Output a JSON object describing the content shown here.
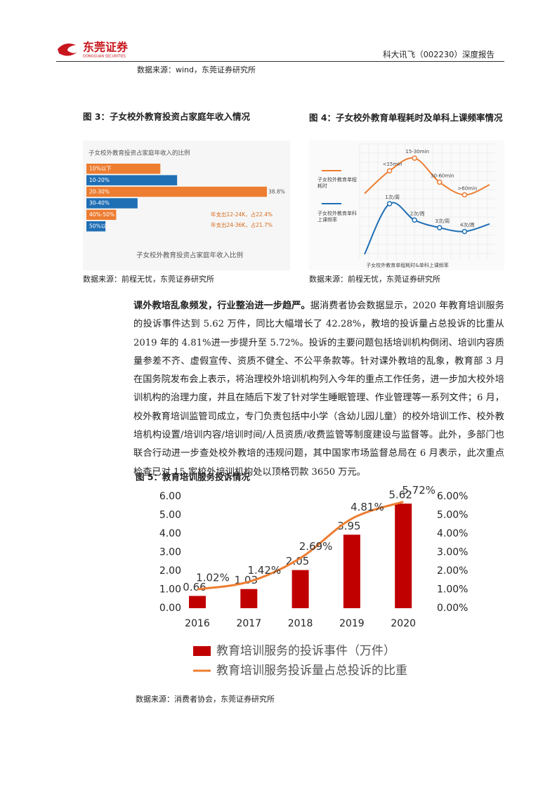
{
  "header": {
    "logo_name": "东莞证券",
    "logo_sub": "DONGGUAN SECURITIES",
    "report": "科大讯飞（002230）深度报告"
  },
  "source_top": "数据来源：wind，东莞证券研究所",
  "figure3": {
    "caption": "图 3：子女校外教育投资占家庭年收入情况",
    "source": "数据来源：前程无忧，东莞证券研究所"
  },
  "figure4": {
    "caption": "图 4：子女校外教育单程耗时及单科上课频率情况",
    "source": "数据来源：前程无忧，东莞证券研究所"
  },
  "paragraph": {
    "lead": "课外教培乱象频发，行业整治进一步趋严。",
    "body": "据消费者协会数据显示，2020 年教育培训服务的投诉事件达到 5.62 万件，同比大幅增长了 42.28%，教培的投诉量占总投诉的比重从 2019 年的 4.81%进一步提升至 5.72%。投诉的主要问题包括培训机构倒闭、培训内容质量参差不齐、虚假宣传、资质不健全、不公平条款等。针对课外教培的乱象，教育部 3 月在国务院发布会上表示，将治理校外培训机构列入今年的重点工作任务，进一步加大校外培训机构的治理力度，并且在随后下发了针对学生睡眠管理、作业管理等一系列文件；6 月，校外教育培训监管司成立，专门负责包括中小学（含幼儿园儿童）的校外培训工作、校外教培机构设置/培训内容/培训时间/人员资质/收费监管等制度建设与监督等。此外，多部门也联合行动进一步查处校外教培的违规问题，其中国家市场监督总局在 6 月表示，此次重点检查已对 15 家校外培训机构处以顶格罚款 3650 万元。"
  },
  "figure5": {
    "caption": "图 5：教育培训服务投诉情况",
    "source": "数据来源：消费者协会，东莞证券研究所"
  },
  "chart_data": [
    {
      "type": "hbar",
      "title": "子女校外教育投资占家庭年收入的比例",
      "x_label": "子女校外教育投资占家庭年收入比例",
      "categories": [
        "10%以下",
        "10-20%",
        "20-30%",
        "30-40%",
        "40%-50%",
        "50%以上"
      ],
      "values": [
        15.9,
        19.5,
        38.8,
        11,
        6.4,
        4.1
      ],
      "value_labels": [
        null,
        null,
        "38.8%",
        null,
        null,
        null
      ],
      "colors": [
        "#ed7d31",
        "#1f6fb5",
        "#ed7d31",
        "#1f6fb5",
        "#ed7d31",
        "#1f6fb5"
      ],
      "annotations": [
        "年支出12-24K，占22.4%",
        "年支出24-36K，占21.7%"
      ]
    },
    {
      "type": "line",
      "x_label": "子女校外教育单程耗时&单科上课频率",
      "grid": true,
      "categories": [
        null,
        null,
        null,
        null,
        null,
        null
      ],
      "series": [
        {
          "name": "子女校外教育单程耗时",
          "color": "#ed7d31",
          "values": [
            58,
            76,
            86,
            67,
            57,
            65
          ],
          "point_labels": [
            null,
            "<15min",
            "15-30min",
            "30-60min",
            ">60min",
            null
          ]
        },
        {
          "name": "子女校外教育单科上课频率",
          "color": "#1f6fb5",
          "values": [
            10,
            50,
            37,
            31,
            28,
            34
          ],
          "point_labels": [
            null,
            "1次/周",
            "2次/周",
            "3次/周",
            "4次/周",
            null
          ]
        }
      ]
    },
    {
      "type": "bar-line",
      "categories": [
        "2016",
        "2017",
        "2018",
        "2019",
        "2020"
      ],
      "series": [
        {
          "name": "教育培训服务的投诉事件（万件）",
          "color": "#c00000",
          "values": [
            0.66,
            1.03,
            2.05,
            3.95,
            5.62
          ]
        },
        {
          "name": "教育培训服务投诉量占总投诉的比重",
          "color": "#ed7d31",
          "axis": "y2",
          "values": [
            1.02,
            1.42,
            2.69,
            4.81,
            5.72
          ],
          "value_labels": [
            "1.02%",
            "1.42%",
            "2.69%",
            "4.81%",
            "5.72%"
          ]
        }
      ],
      "ylim": [
        0,
        6
      ],
      "yticks": [
        {
          "value": 0,
          "label": "0.00"
        },
        {
          "value": 1,
          "label": "1.00"
        },
        {
          "value": 2,
          "label": "2.00"
        },
        {
          "value": 3,
          "label": "3.00"
        },
        {
          "value": 4,
          "label": "4.00"
        },
        {
          "value": 5,
          "label": "5.00"
        },
        {
          "value": 6,
          "label": "6.00"
        }
      ],
      "y2lim": [
        0,
        6
      ],
      "y2ticks": [
        {
          "value": 0,
          "label": "0.00%"
        },
        {
          "value": 1,
          "label": "1.00%"
        },
        {
          "value": 2,
          "label": "2.00%"
        },
        {
          "value": 3,
          "label": "3.00%"
        },
        {
          "value": 4,
          "label": "4.00%"
        },
        {
          "value": 5,
          "label": "5.00%"
        },
        {
          "value": 6,
          "label": "6.00%"
        }
      ]
    }
  ]
}
